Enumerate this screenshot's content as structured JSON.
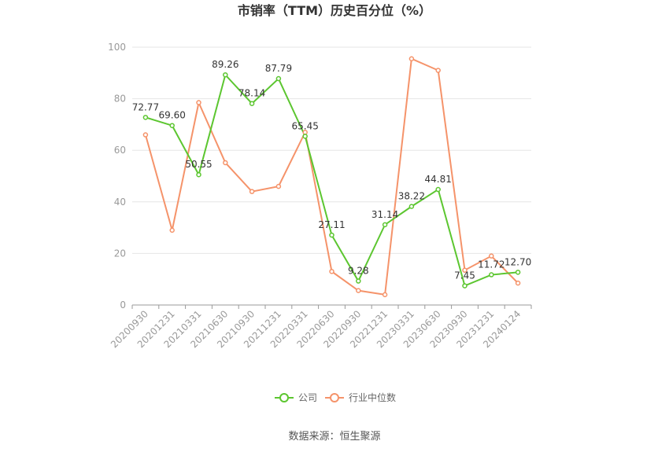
{
  "chart_data": {
    "type": "line",
    "title": "市销率（TTM）历史百分位（%）",
    "categories": [
      "20200930",
      "20201231",
      "20210331",
      "20210630",
      "20210930",
      "20211231",
      "20220331",
      "20220630",
      "20220930",
      "20221231",
      "20230331",
      "20230630",
      "20230930",
      "20231231",
      "20240124"
    ],
    "series": [
      {
        "name": "公司",
        "color": "#5cc630",
        "values": [
          72.77,
          69.6,
          50.55,
          89.26,
          78.14,
          87.79,
          65.45,
          27.11,
          9.28,
          31.14,
          38.22,
          44.81,
          7.45,
          11.72,
          12.7
        ],
        "labels": [
          "72.77",
          "69.60",
          "50.55",
          "89.26",
          "78.14",
          "87.79",
          "65.45",
          "27.11",
          "9.28",
          "31.14",
          "38.22",
          "44.81",
          "7.45",
          "11.72",
          "12.70"
        ]
      },
      {
        "name": "行业中位数",
        "color": "#f5936a",
        "values": [
          66,
          29,
          78.5,
          55.2,
          44,
          46,
          67,
          13,
          5.6,
          4,
          95.5,
          91,
          13.5,
          19,
          8.5
        ]
      }
    ],
    "yticks": [
      "0",
      "20",
      "40",
      "60",
      "80",
      "100"
    ],
    "ylim": [
      0,
      100
    ],
    "grid": true,
    "legend_position": "bottom",
    "source": "数据来源：恒生聚源"
  }
}
